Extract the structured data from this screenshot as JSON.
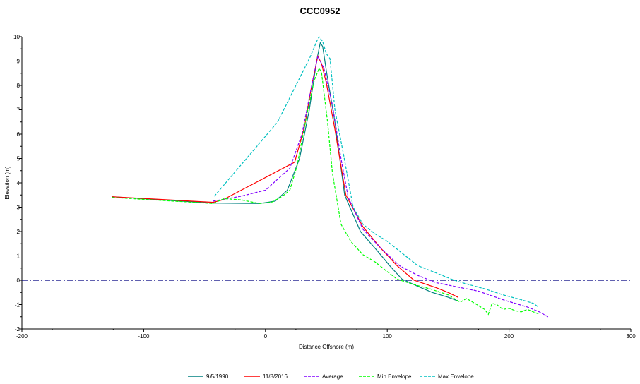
{
  "chart_data": {
    "type": "line",
    "title": "CCC0952",
    "xlabel": "Distance Offshore (m)",
    "ylabel": "Elevation (m)",
    "xlim": [
      -200,
      300
    ],
    "ylim": [
      -2,
      10
    ],
    "xticks": [
      -200,
      -100,
      0,
      100,
      200,
      300
    ],
    "yticks": [
      -2,
      -1,
      0,
      1,
      2,
      3,
      4,
      5,
      6,
      7,
      8,
      9,
      10
    ],
    "grid": false,
    "legend_position": "bottom-center",
    "reference_line": {
      "y": 0,
      "color": "#000080",
      "style": "dash-dot"
    },
    "series": [
      {
        "name": "9/5/1990",
        "color": "#008080",
        "dash": "solid",
        "points": [
          [
            -126,
            3.43
          ],
          [
            -45,
            3.17
          ],
          [
            -5,
            3.15
          ],
          [
            8,
            3.25
          ],
          [
            18,
            3.7
          ],
          [
            28,
            5.0
          ],
          [
            36,
            7.0
          ],
          [
            42,
            9.0
          ],
          [
            45,
            9.75
          ],
          [
            47,
            9.6
          ],
          [
            50,
            8.6
          ],
          [
            57,
            6.5
          ],
          [
            65,
            3.5
          ],
          [
            78,
            2.0
          ],
          [
            92,
            1.2
          ],
          [
            102,
            0.6
          ],
          [
            112,
            0.05
          ],
          [
            125,
            -0.25
          ],
          [
            137,
            -0.5
          ],
          [
            150,
            -0.7
          ],
          [
            158,
            -0.85
          ]
        ]
      },
      {
        "name": "11/8/2016",
        "color": "#ff0000",
        "dash": "solid",
        "points": [
          [
            -126,
            3.43
          ],
          [
            -43,
            3.2
          ],
          [
            -35,
            3.3
          ],
          [
            24,
            4.85
          ],
          [
            32,
            6.3
          ],
          [
            38,
            8.0
          ],
          [
            43,
            9.2
          ],
          [
            46,
            8.9
          ],
          [
            50,
            8.1
          ],
          [
            57,
            6.2
          ],
          [
            66,
            3.5
          ],
          [
            80,
            2.2
          ],
          [
            95,
            1.3
          ],
          [
            108,
            0.6
          ],
          [
            122,
            0.0
          ],
          [
            140,
            -0.3
          ],
          [
            150,
            -0.5
          ],
          [
            158,
            -0.7
          ]
        ]
      },
      {
        "name": "Average",
        "color": "#8000ff",
        "dash": "4,2",
        "points": [
          [
            -43,
            3.25
          ],
          [
            -20,
            3.45
          ],
          [
            0,
            3.7
          ],
          [
            20,
            4.6
          ],
          [
            30,
            6.0
          ],
          [
            38,
            8.0
          ],
          [
            43,
            9.2
          ],
          [
            48,
            8.7
          ],
          [
            55,
            7.2
          ],
          [
            62,
            5.0
          ],
          [
            68,
            3.4
          ],
          [
            80,
            2.1
          ],
          [
            95,
            1.3
          ],
          [
            110,
            0.6
          ],
          [
            125,
            0.2
          ],
          [
            140,
            -0.1
          ],
          [
            155,
            -0.25
          ],
          [
            175,
            -0.45
          ],
          [
            195,
            -0.8
          ],
          [
            215,
            -1.1
          ],
          [
            225,
            -1.3
          ],
          [
            232,
            -1.5
          ]
        ]
      },
      {
        "name": "Min Envelope",
        "color": "#00ff00",
        "dash": "4,2",
        "points": [
          [
            -126,
            3.4
          ],
          [
            -43,
            3.15
          ],
          [
            -34,
            3.35
          ],
          [
            -20,
            3.3
          ],
          [
            -5,
            3.15
          ],
          [
            5,
            3.2
          ],
          [
            14,
            3.45
          ],
          [
            20,
            3.7
          ],
          [
            26,
            4.7
          ],
          [
            34,
            6.8
          ],
          [
            40,
            8.2
          ],
          [
            44,
            8.7
          ],
          [
            46,
            8.55
          ],
          [
            51,
            6.5
          ],
          [
            55,
            4.4
          ],
          [
            62,
            2.3
          ],
          [
            70,
            1.6
          ],
          [
            80,
            1.05
          ],
          [
            90,
            0.75
          ],
          [
            100,
            0.35
          ],
          [
            108,
            0.05
          ],
          [
            120,
            -0.15
          ],
          [
            135,
            -0.35
          ],
          [
            150,
            -0.6
          ],
          [
            160,
            -0.9
          ],
          [
            165,
            -0.75
          ],
          [
            172,
            -0.95
          ],
          [
            180,
            -1.2
          ],
          [
            183,
            -1.4
          ],
          [
            186,
            -0.95
          ],
          [
            190,
            -1.0
          ],
          [
            195,
            -1.2
          ],
          [
            200,
            -1.15
          ],
          [
            205,
            -1.25
          ],
          [
            210,
            -1.3
          ],
          [
            215,
            -1.2
          ],
          [
            220,
            -1.3
          ],
          [
            225,
            -1.4
          ]
        ]
      },
      {
        "name": "Max Envelope",
        "color": "#00c0c0",
        "dash": "4,2",
        "points": [
          [
            -42,
            3.45
          ],
          [
            10,
            6.5
          ],
          [
            30,
            8.5
          ],
          [
            37,
            9.2
          ],
          [
            42,
            9.8
          ],
          [
            44,
            10.0
          ],
          [
            47,
            9.8
          ],
          [
            50,
            9.3
          ],
          [
            53,
            9.1
          ],
          [
            57,
            7.0
          ],
          [
            64,
            5.2
          ],
          [
            72,
            3.0
          ],
          [
            80,
            2.3
          ],
          [
            90,
            1.9
          ],
          [
            100,
            1.6
          ],
          [
            110,
            1.2
          ],
          [
            125,
            0.6
          ],
          [
            140,
            0.3
          ],
          [
            155,
            0.0
          ],
          [
            165,
            -0.15
          ],
          [
            180,
            -0.35
          ],
          [
            195,
            -0.6
          ],
          [
            210,
            -0.8
          ],
          [
            220,
            -0.95
          ],
          [
            224,
            -1.1
          ]
        ]
      }
    ]
  }
}
